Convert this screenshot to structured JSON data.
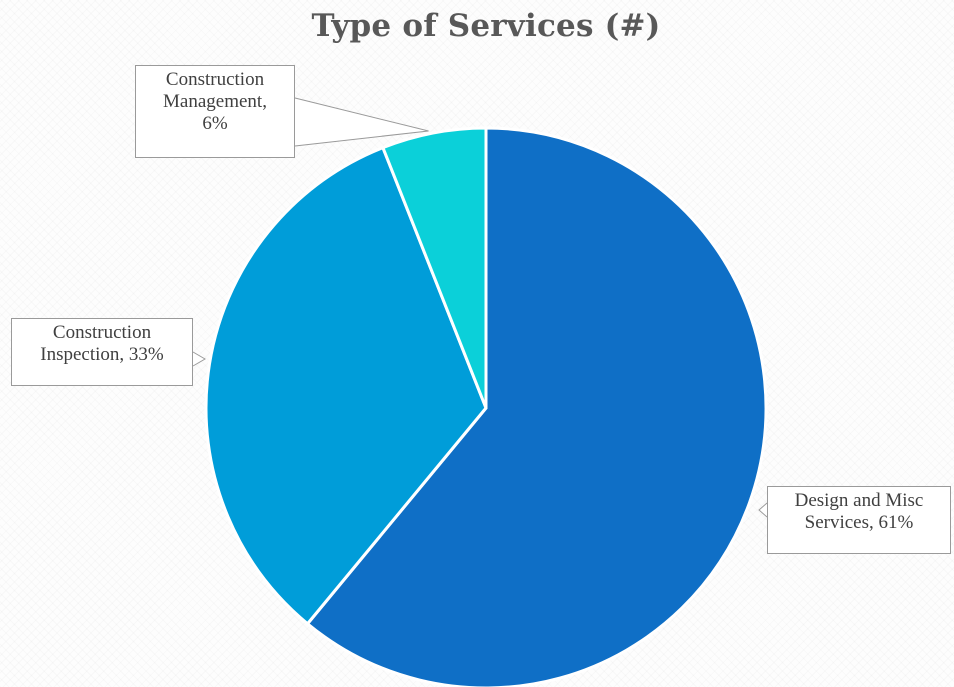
{
  "chart_data": {
    "type": "pie",
    "title": "Type of Services (#)",
    "slices": [
      {
        "label": "Design and Misc Services",
        "value": 61,
        "display": [
          "Design and Misc",
          "Services, 61%"
        ],
        "color": "#0f6fc6"
      },
      {
        "label": "Construction Inspection",
        "value": 33,
        "display": [
          "Construction",
          "Inspection, 33%"
        ],
        "color": "#009dd9"
      },
      {
        "label": "Construction Management",
        "value": 6,
        "display": [
          "Construction",
          "Management,",
          "6%"
        ],
        "color": "#0bd0d9"
      }
    ],
    "start_angle_deg": 0,
    "direction": "clockwise",
    "legend": "none",
    "data_labels": "callouts with leader lines"
  }
}
